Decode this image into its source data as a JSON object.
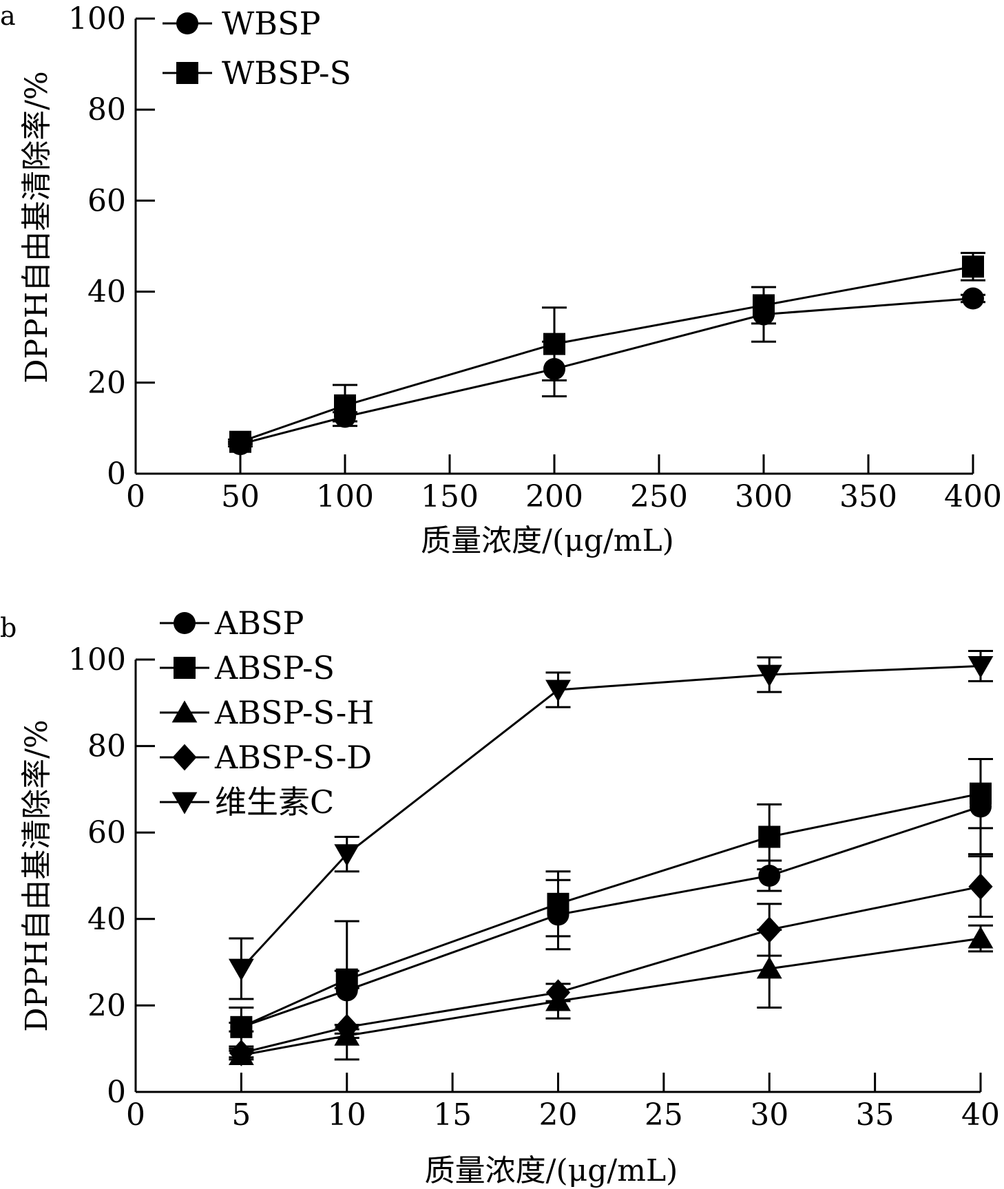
{
  "chart_data": [
    {
      "panel_label": "a",
      "type": "line",
      "xlabel": "质量浓度/(μg/mL)",
      "ylabel": "DPPH自由基清除率/%",
      "xlim": [
        0,
        400
      ],
      "ylim": [
        0,
        100
      ],
      "x_ticks": [
        "0",
        "50",
        "100",
        "150",
        "200",
        "250",
        "300",
        "350",
        "400"
      ],
      "y_ticks": [
        "0",
        "20",
        "40",
        "60",
        "80",
        "100"
      ],
      "x_tick_values": [
        0,
        50,
        100,
        150,
        200,
        250,
        300,
        350,
        400
      ],
      "y_tick_values": [
        0,
        20,
        40,
        60,
        80,
        100
      ],
      "legend_position": "top-left",
      "series": [
        {
          "name": "WBSP",
          "marker": "circle",
          "x": [
            50,
            100,
            200,
            300,
            400
          ],
          "values": [
            6.5,
            12.5,
            23,
            35,
            38.5
          ],
          "error": [
            0.5,
            1.0,
            6.0,
            6.0,
            0.8
          ]
        },
        {
          "name": "WBSP-S",
          "marker": "square",
          "x": [
            50,
            100,
            200,
            300,
            400
          ],
          "values": [
            7,
            15,
            28.5,
            37,
            45.5
          ],
          "error": [
            0.5,
            4.5,
            8.0,
            4.0,
            3.0
          ]
        }
      ]
    },
    {
      "panel_label": "b",
      "type": "line",
      "xlabel": "质量浓度/(μg/mL)",
      "ylabel": "DPPH自由基清除率/%",
      "xlim": [
        0,
        40
      ],
      "ylim": [
        0,
        100
      ],
      "x_ticks": [
        "0",
        "5",
        "10",
        "15",
        "20",
        "25",
        "30",
        "35",
        "40"
      ],
      "y_ticks": [
        "0",
        "20",
        "40",
        "60",
        "80",
        "100"
      ],
      "x_tick_values": [
        0,
        5,
        10,
        15,
        20,
        25,
        30,
        35,
        40
      ],
      "y_tick_values": [
        0,
        20,
        40,
        60,
        80,
        100
      ],
      "legend_position": "top-left",
      "series": [
        {
          "name": "ABSP",
          "marker": "circle",
          "x": [
            5,
            10,
            20,
            30,
            40
          ],
          "values": [
            15,
            23.5,
            41,
            50,
            66
          ],
          "error": [
            4.5,
            16,
            8,
            3.5,
            11
          ]
        },
        {
          "name": "ABSP-S",
          "marker": "square",
          "x": [
            5,
            10,
            20,
            30,
            40
          ],
          "values": [
            15,
            26,
            43.5,
            59,
            69
          ],
          "error": [
            1,
            2,
            7.5,
            7.5,
            8
          ]
        },
        {
          "name": "ABSP-S-H",
          "marker": "triangle-up",
          "x": [
            5,
            10,
            20,
            30,
            40
          ],
          "values": [
            8.5,
            13,
            21,
            28.5,
            35.5
          ],
          "error": [
            1,
            0.5,
            4,
            9,
            3
          ]
        },
        {
          "name": "ABSP-S-D",
          "marker": "diamond",
          "x": [
            5,
            10,
            20,
            30,
            40
          ],
          "values": [
            9,
            15,
            23,
            37.5,
            47.5
          ],
          "error": [
            1,
            0.5,
            2,
            6,
            7
          ]
        },
        {
          "name": "维生素C",
          "marker": "triangle-down",
          "x": [
            5,
            10,
            20,
            30,
            40
          ],
          "values": [
            28.5,
            55,
            93,
            96.5,
            98.5
          ],
          "error": [
            7,
            4,
            4,
            4,
            3.5
          ]
        }
      ]
    }
  ]
}
